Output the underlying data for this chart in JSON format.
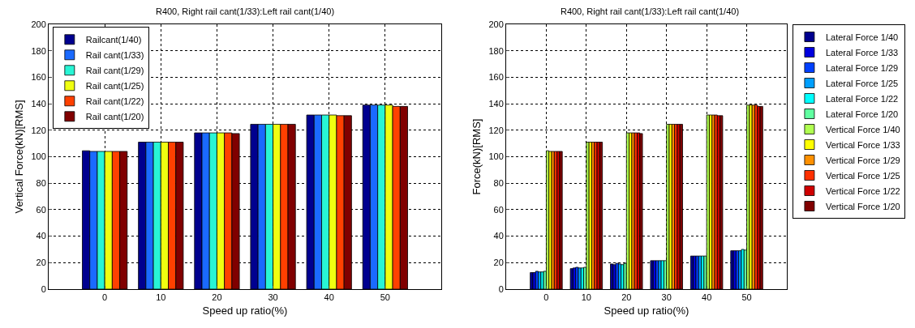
{
  "chart_data": [
    {
      "type": "bar",
      "title": "R400, Right rail cant(1/33):Left rail cant(1/40)",
      "xlabel": "Speed up ratio(%)",
      "ylabel": "Vertical Force(kN)[RMS]",
      "categories": [
        "0",
        "10",
        "20",
        "30",
        "40",
        "50"
      ],
      "ylim": [
        0,
        200
      ],
      "yticks": [
        0,
        20,
        40,
        60,
        80,
        100,
        120,
        140,
        160,
        180,
        200
      ],
      "grid": true,
      "legend": "top left",
      "series": [
        {
          "name": "Railcant(1/40)",
          "color": "#00008f",
          "values": [
            104.5,
            111,
            118,
            124.5,
            131.5,
            139
          ]
        },
        {
          "name": "Rail cant(1/33)",
          "color": "#1a6aff",
          "values": [
            104,
            111,
            118,
            124.5,
            131.5,
            139
          ]
        },
        {
          "name": "Rail cant(1/29)",
          "color": "#28f5d5",
          "values": [
            104,
            111,
            118,
            124.5,
            131.5,
            139
          ]
        },
        {
          "name": "Rail cant(1/25)",
          "color": "#f0ff10",
          "values": [
            104,
            111,
            118,
            124.5,
            131.5,
            139
          ]
        },
        {
          "name": "Rail cant(1/22)",
          "color": "#ff4000",
          "values": [
            104,
            111,
            118,
            124.5,
            131,
            138
          ]
        },
        {
          "name": "Rail cant(1/20)",
          "color": "#800000",
          "values": [
            104,
            111,
            117.5,
            124.5,
            131,
            138
          ]
        }
      ]
    },
    {
      "type": "bar",
      "title": "R400, Right rail cant(1/33):Left rail cant(1/40)",
      "xlabel": "Speed up ratio(%)",
      "ylabel": "Force(kN)[RMS]",
      "categories": [
        "0",
        "10",
        "20",
        "30",
        "40",
        "50"
      ],
      "ylim": [
        0,
        200
      ],
      "yticks": [
        0,
        20,
        40,
        60,
        80,
        100,
        120,
        140,
        160,
        180,
        200
      ],
      "grid": true,
      "legend": "right",
      "series": [
        {
          "name": "Lateral Force 1/40",
          "color": "#00008f",
          "values": [
            12.5,
            15.5,
            19,
            21.5,
            25,
            29
          ]
        },
        {
          "name": "Lateral Force 1/33",
          "color": "#0000df",
          "values": [
            12.5,
            16,
            18.5,
            21.5,
            25,
            29
          ]
        },
        {
          "name": "Lateral Force 1/29",
          "color": "#0040ff",
          "values": [
            13.5,
            16.5,
            19.5,
            21.5,
            25,
            29
          ]
        },
        {
          "name": "Lateral Force 1/25",
          "color": "#009fff",
          "values": [
            13,
            16,
            19,
            21.5,
            25,
            29
          ]
        },
        {
          "name": "Lateral Force 1/22",
          "color": "#00ffff",
          "values": [
            13,
            16,
            18.5,
            21.5,
            25,
            30
          ]
        },
        {
          "name": "Lateral Force 1/20",
          "color": "#60ffa0",
          "values": [
            13.5,
            16.5,
            19.5,
            21.5,
            25,
            29.5
          ]
        },
        {
          "name": "Vertical Force 1/40",
          "color": "#b0ff50",
          "values": [
            104.5,
            111,
            118,
            124.5,
            131.5,
            139
          ]
        },
        {
          "name": "Vertical Force 1/33",
          "color": "#ffff00",
          "values": [
            104,
            111,
            118,
            124.5,
            131.5,
            139
          ]
        },
        {
          "name": "Vertical Force 1/29",
          "color": "#ff9000",
          "values": [
            104,
            111,
            118,
            124.5,
            131.5,
            139
          ]
        },
        {
          "name": "Vertical Force 1/25",
          "color": "#ff3000",
          "values": [
            104,
            111,
            118,
            124.5,
            131.5,
            139
          ]
        },
        {
          "name": "Vertical Force 1/22",
          "color": "#cf0000",
          "values": [
            104,
            111,
            118,
            124.5,
            131,
            138
          ]
        },
        {
          "name": "Vertical Force 1/20",
          "color": "#800000",
          "values": [
            104,
            111,
            117.5,
            124.5,
            131,
            138
          ]
        }
      ]
    }
  ]
}
